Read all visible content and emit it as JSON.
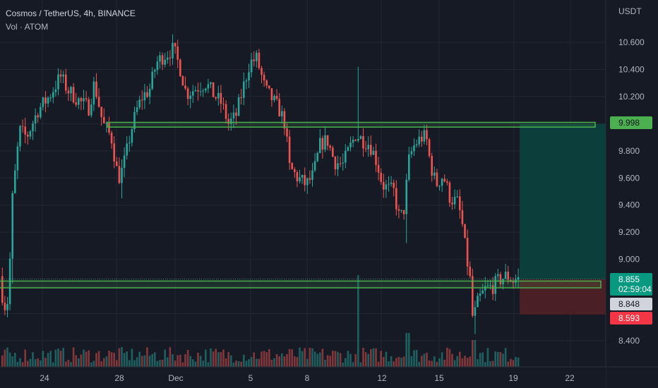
{
  "chart_data": {
    "type": "candlestick",
    "title": "Cosmos / TetherUS, 4h, BINANCE",
    "volume_label": "Vol · ATOM",
    "currency_label": "USDT",
    "ylim": [
      8.25,
      10.75
    ],
    "y_ticks": [
      10.6,
      10.4,
      10.2,
      9.8,
      9.6,
      9.4,
      9.2,
      9.0,
      8.4
    ],
    "y_tick_labels": [
      "10.600",
      "10.400",
      "10.200",
      "9.800",
      "9.600",
      "9.400",
      "9.200",
      "9.000",
      "8.400"
    ],
    "x_tick_labels": [
      "24",
      "28",
      "Dec",
      "5",
      "8",
      "12",
      "15",
      "19",
      "22"
    ],
    "price_tags": [
      {
        "label": "9.998",
        "value": 9.998,
        "color": "#4caf50",
        "text_color": "#131722"
      },
      {
        "label": "8.855",
        "value": 8.855,
        "color": "#089981",
        "text_color": "#ffffff"
      },
      {
        "label": "02:59:04",
        "value": 8.79,
        "color": "#089981",
        "text_color": "#ffffff"
      },
      {
        "label": "8.848",
        "value": 8.72,
        "color": "#d1d4dc",
        "text_color": "#131722"
      },
      {
        "label": "8.593",
        "value": 8.593,
        "color": "#f23645",
        "text_color": "#ffffff"
      }
    ],
    "zones": [
      {
        "name": "resistance",
        "low": 9.975,
        "high": 10.01
      },
      {
        "name": "support",
        "low": 8.79,
        "high": 8.84
      }
    ],
    "position": {
      "entry": 8.855,
      "target": 9.998,
      "stop": 8.593
    },
    "colors": {
      "up": "#26a69a",
      "down": "#ef5350",
      "zone_stroke": "#4caf50",
      "zone_fill": "#4caf5026",
      "target_fill": "#0c3f3b",
      "stop_fill": "#4a1f26"
    }
  }
}
